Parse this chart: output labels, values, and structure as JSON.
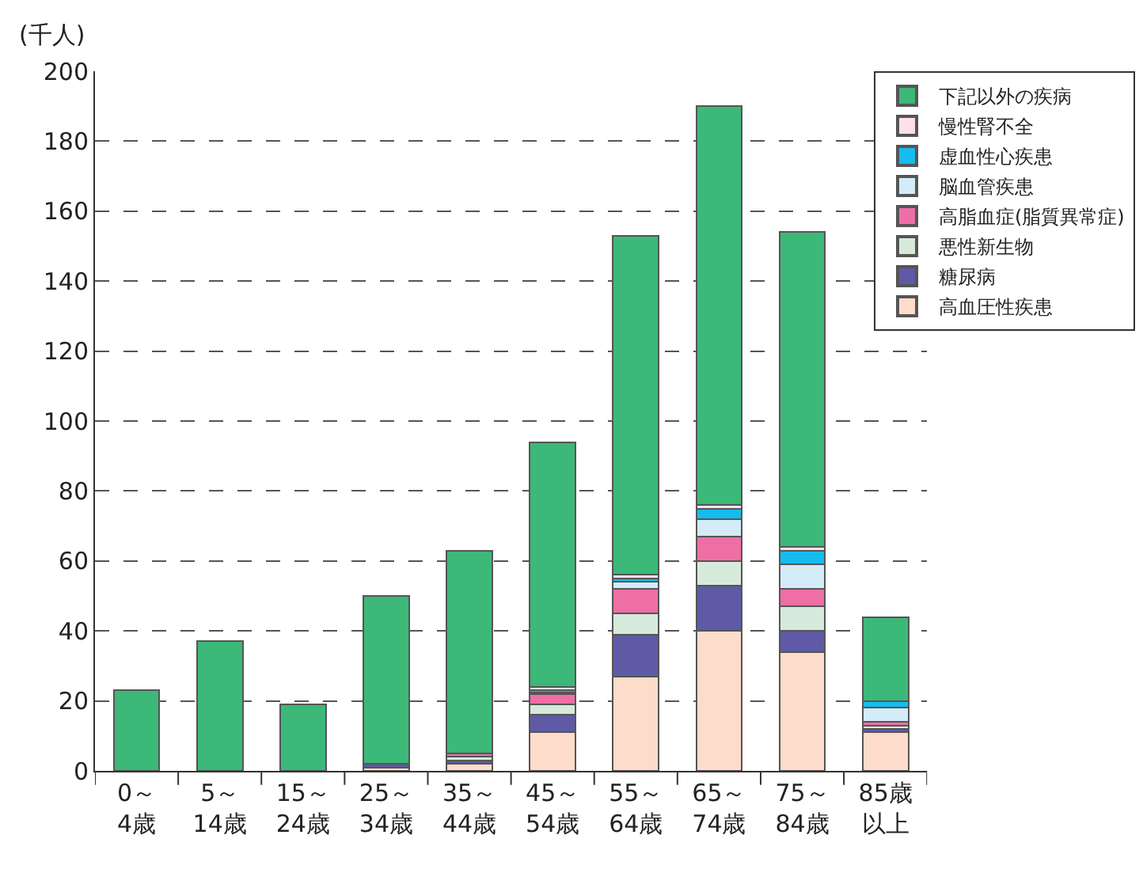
{
  "chart_data": {
    "type": "bar",
    "stacked": true,
    "ylabel": "(千人)",
    "categories": [
      "0～\n4歳",
      "5～\n14歳",
      "15～\n24歳",
      "25～\n34歳",
      "35～\n44歳",
      "45～\n54歳",
      "55～\n64歳",
      "65～\n74歳",
      "75～\n84歳",
      "85歳以上"
    ],
    "series": [
      {
        "name": "高血圧性疾患",
        "color": "#fddccb",
        "values": [
          0,
          0,
          0,
          1,
          2,
          11,
          27,
          40,
          34,
          11
        ]
      },
      {
        "name": "糖尿病",
        "color": "#5e5aa5",
        "values": [
          0,
          0,
          0,
          1,
          1,
          5,
          12,
          13,
          6,
          1
        ]
      },
      {
        "name": "悪性新生物",
        "color": "#d6eadb",
        "values": [
          0,
          0,
          0,
          0,
          1,
          3,
          6,
          7,
          7,
          1
        ]
      },
      {
        "name": "高脂血症(脂質異常症)",
        "color": "#ee6fa5",
        "values": [
          0,
          0,
          0,
          0,
          1,
          3,
          7,
          7,
          5,
          1
        ]
      },
      {
        "name": "脳血管疾患",
        "color": "#d4ecf8",
        "values": [
          0,
          0,
          0,
          0,
          0,
          0.5,
          2,
          5,
          7,
          4
        ]
      },
      {
        "name": "虚血性心疾患",
        "color": "#14bdee",
        "values": [
          0,
          0,
          0,
          0,
          0,
          0.5,
          1,
          3,
          4,
          2
        ]
      },
      {
        "name": "慢性腎不全",
        "color": "#fde0ea",
        "values": [
          0,
          0,
          0,
          0,
          0,
          1,
          1,
          1,
          1,
          0
        ]
      },
      {
        "name": "下記以外の疾病",
        "color": "#3cb878",
        "values": [
          23,
          37,
          19,
          48,
          58,
          70,
          97,
          114,
          90,
          24
        ]
      }
    ],
    "ylim": [
      0,
      200
    ],
    "yticks": [
      0,
      20,
      40,
      60,
      80,
      100,
      120,
      140,
      160,
      180,
      200
    ],
    "grid": "y",
    "legend": "top right"
  }
}
